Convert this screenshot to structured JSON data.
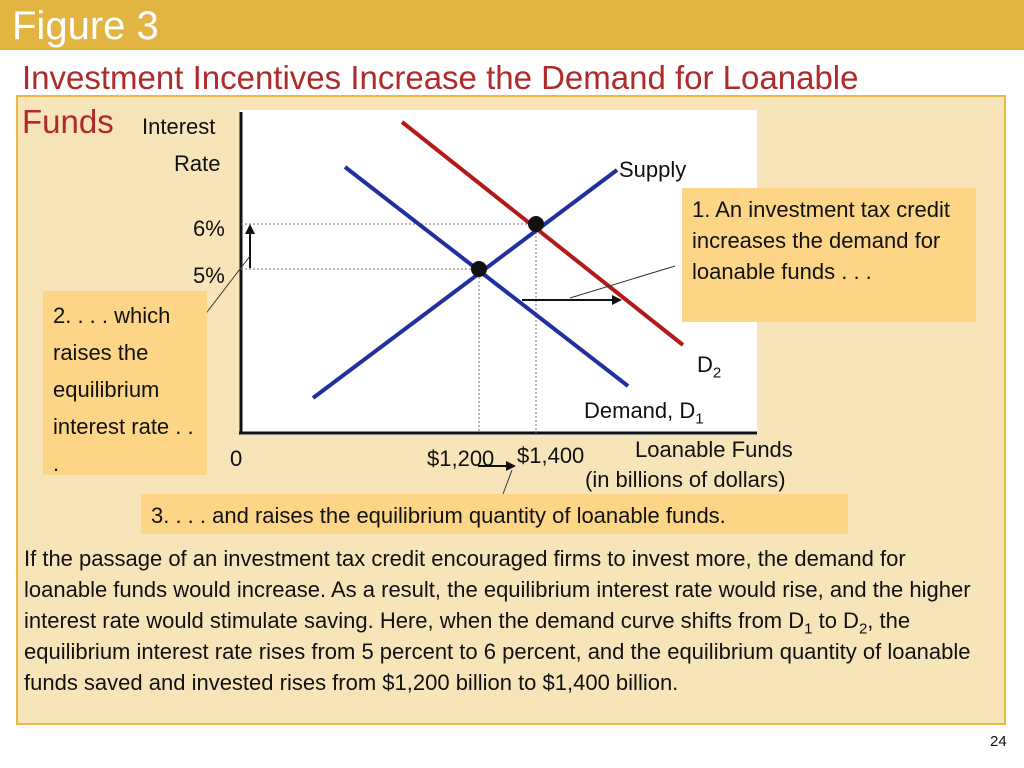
{
  "slide": {
    "figure_label": "Figure 3",
    "title_line1": "Investment Incentives Increase the Demand for Loanable",
    "title_line2": "Funds",
    "page_number": "24"
  },
  "colors": {
    "header_bar": "#e2b542",
    "title": "#b02a2a",
    "panel_bg": "#f8e4b9",
    "note_bg": "#fdd586",
    "supply_curve": "#1f2fa0",
    "demand1_curve": "#1f2fa0",
    "demand2_curve": "#b41818"
  },
  "chart_data": {
    "type": "line",
    "ylabel_line1": "Interest",
    "ylabel_line2": "Rate",
    "xlabel_line1": "Loanable Funds",
    "xlabel_line2": "(in billions of dollars)",
    "origin_label": "0",
    "y_ticks": [
      {
        "value": 6,
        "label": "6%"
      },
      {
        "value": 5,
        "label": "5%"
      }
    ],
    "x_ticks": [
      {
        "value": 1200,
        "label": "$1,200"
      },
      {
        "value": 1400,
        "label": "$1,400"
      }
    ],
    "series": [
      {
        "name": "Supply",
        "label": "Supply"
      },
      {
        "name": "Demand, D1",
        "label_main": "Demand, D",
        "label_sub": "1"
      },
      {
        "name": "D2",
        "label_main": "D",
        "label_sub": "2"
      }
    ],
    "equilibria": [
      {
        "x": 1200,
        "y": 5
      },
      {
        "x": 1400,
        "y": 6
      }
    ]
  },
  "annotations": {
    "note1": "1. An investment tax credit increases the demand for loanable funds . . .",
    "note2": "2. . . . which raises the equilibrium interest rate . . .",
    "note3": "3. . . . and raises the equilibrium quantity of loanable funds."
  },
  "caption": {
    "p1": "If the passage of an investment tax credit encouraged firms to invest more, the demand for loanable funds would increase. As a result, the equilibrium interest rate would rise, and the higher interest rate would stimulate saving. Here, when the demand curve shifts from D",
    "sub1": "1",
    "p2": " to D",
    "sub2": "2",
    "p3": ", the equilibrium interest rate rises from 5 percent to 6 percent, and the equilibrium quantity of loanable funds saved and invested rises from $1,200 billion to $1,400 billion."
  }
}
